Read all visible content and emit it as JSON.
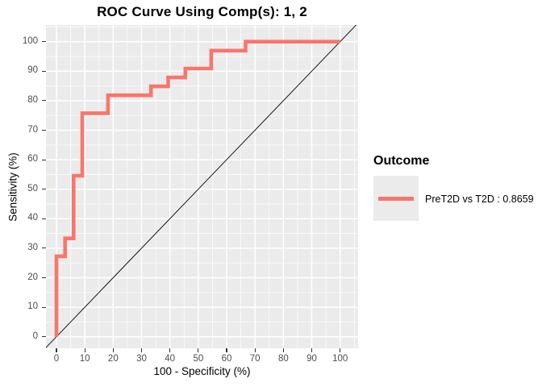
{
  "chart_data": {
    "type": "line",
    "subtype": "roc-step-curve",
    "title": "ROC Curve Using Comp(s): 1, 2",
    "xlabel": "100 - Specificity (%)",
    "ylabel": "Sensitivity (%)",
    "xlim": [
      -4,
      106
    ],
    "ylim": [
      -4,
      106
    ],
    "x_ticks": [
      0,
      10,
      20,
      30,
      40,
      50,
      60,
      70,
      80,
      90,
      100
    ],
    "y_ticks": [
      0,
      10,
      20,
      30,
      40,
      50,
      60,
      70,
      80,
      90,
      100
    ],
    "grid": {
      "major_every": 10,
      "minor_every": 5,
      "color": "#FFFFFF",
      "background": "#EBEBEB",
      "major_width": 1.5,
      "minor_width": 0.7
    },
    "legend": {
      "position": "right",
      "title": "Outcome",
      "entries": [
        {
          "label": "PreT2D vs T2D : 0.8659",
          "color": "#F8766D",
          "auc": 0.8659
        }
      ]
    },
    "series": [
      {
        "name": "chance-diagonal",
        "type": "line",
        "color": "#000000",
        "stroke_width": 0.9,
        "points": [
          [
            -4,
            -4
          ],
          [
            106,
            106
          ]
        ]
      },
      {
        "name": "PreT2D vs T2D",
        "type": "step",
        "color": "#F8766D",
        "stroke_width": 4.6,
        "points": [
          [
            0,
            0
          ],
          [
            0,
            27.27
          ],
          [
            3.03,
            27.27
          ],
          [
            3.03,
            33.33
          ],
          [
            6.06,
            33.33
          ],
          [
            6.06,
            54.55
          ],
          [
            9.09,
            54.55
          ],
          [
            9.09,
            75.76
          ],
          [
            18.18,
            75.76
          ],
          [
            18.18,
            81.82
          ],
          [
            33.33,
            81.82
          ],
          [
            33.33,
            84.85
          ],
          [
            39.39,
            84.85
          ],
          [
            39.39,
            87.88
          ],
          [
            45.45,
            87.88
          ],
          [
            45.45,
            90.91
          ],
          [
            54.55,
            90.91
          ],
          [
            54.55,
            96.97
          ],
          [
            66.67,
            96.97
          ],
          [
            66.67,
            100
          ],
          [
            100,
            100
          ]
        ]
      }
    ],
    "colors": {
      "tick_text": "#4D4D4D",
      "tick_mark": "#333333",
      "text": "#000000",
      "accent": "#F8766D"
    }
  }
}
